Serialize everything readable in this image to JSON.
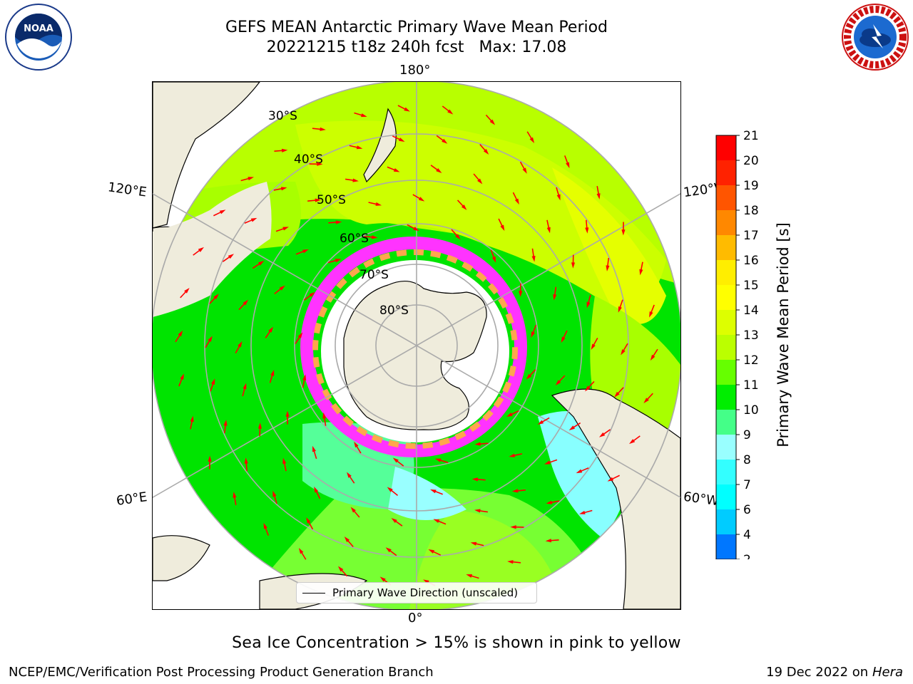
{
  "title": {
    "line1": "GEFS MEAN Antarctic Primary Wave Mean Period",
    "line2_date": "20221215 t18z 240h fcst",
    "line2_max": "Max: 17.08"
  },
  "logos": {
    "left": "NOAA",
    "right": "National Weather Service"
  },
  "map": {
    "projection": "south-polar-stereographic",
    "lon_labels": {
      "top": "180°",
      "bottom": "0°",
      "upper_left": "120°E",
      "upper_right": "120°W",
      "lower_left": "60°E",
      "lower_right": "60°W"
    },
    "lat_labels": [
      "30°S",
      "40°S",
      "50°S",
      "60°S",
      "70°S",
      "80°S"
    ],
    "legend_label": "Primary Wave Direction (unscaled)",
    "arrow_color": "#ff0000",
    "land_color": "#efecdc",
    "sea_ice_colors": [
      "#ff33ff",
      "#ffa64d",
      "#ffffff"
    ]
  },
  "colorbar": {
    "label": "Primary Wave Mean Period [s]",
    "ticks": [
      "2",
      "4",
      "6",
      "7",
      "8",
      "9",
      "10",
      "11",
      "12",
      "13",
      "14",
      "15",
      "16",
      "17",
      "18",
      "19",
      "20",
      "21"
    ],
    "colors": [
      "#0000ff",
      "#0077ff",
      "#00ccff",
      "#00ffff",
      "#33ffff",
      "#99ffff",
      "#44ff88",
      "#00ee00",
      "#66ff00",
      "#bbff00",
      "#ddff00",
      "#ffff00",
      "#ffee00",
      "#ffbb00",
      "#ff8800",
      "#ff5500",
      "#ff2200",
      "#ff0000"
    ]
  },
  "caption": "Sea Ice Concentration > 15% is shown in pink to yellow",
  "footer": {
    "left": "NCEP/EMC/Verification Post Processing Product Generation Branch",
    "date": "19 Dec 2022 on",
    "host": "Hera"
  }
}
